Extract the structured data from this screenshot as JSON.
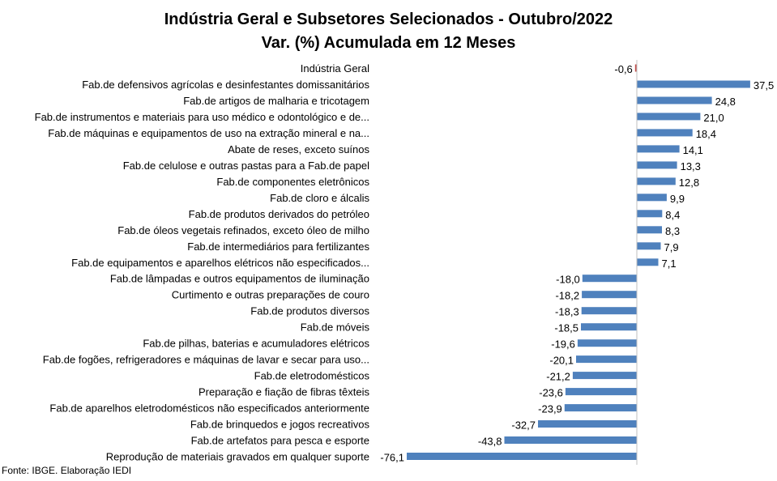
{
  "chart_data": {
    "type": "bar",
    "orientation": "horizontal",
    "title": "Indústria Geral e Subsetores Selecionados - Outubro/2022",
    "subtitle": "Var. (%) Acumulada em 12 Meses",
    "categories": [
      "Indústria Geral",
      "Fab.de defensivos agrícolas e desinfestantes domissanitários",
      "Fab.de artigos de malharia e tricotagem",
      "Fab.de instrumentos e materiais para uso médico e odontológico e de...",
      "Fab.de máquinas e equipamentos de uso na extração mineral e na...",
      "Abate de reses, exceto suínos",
      "Fab.de celulose e outras pastas para a Fab.de papel",
      "Fab.de componentes eletrônicos",
      "Fab.de cloro e álcalis",
      "Fab.de produtos derivados do petróleo",
      "Fab.de óleos vegetais refinados, exceto óleo de milho",
      "Fab.de intermediários para fertilizantes",
      "Fab.de equipamentos e aparelhos elétricos não especificados...",
      "Fab.de lâmpadas e outros equipamentos de iluminação",
      "Curtimento e outras preparações de couro",
      "Fab.de produtos diversos",
      "Fab.de móveis",
      "Fab.de pilhas, baterias e acumuladores elétricos",
      "Fab.de fogões, refrigeradores e máquinas de lavar e secar para uso...",
      "Fab.de eletrodomésticos",
      "Preparação e fiação de fibras têxteis",
      "Fab.de aparelhos eletrodomésticos não especificados anteriormente",
      "Fab.de brinquedos e jogos recreativos",
      "Fab.de artefatos para pesca e esporte",
      "Reprodução de materiais gravados em qualquer suporte"
    ],
    "values": [
      -0.6,
      37.5,
      24.8,
      21.0,
      18.4,
      14.1,
      13.3,
      12.8,
      9.9,
      8.4,
      8.3,
      7.9,
      7.1,
      -18.0,
      -18.2,
      -18.3,
      -18.5,
      -19.6,
      -20.1,
      -21.2,
      -23.6,
      -23.9,
      -32.7,
      -43.8,
      -76.1
    ],
    "value_labels": [
      "-0,6",
      "37,5",
      "24,8",
      "21,0",
      "18,4",
      "14,1",
      "13,3",
      "12,8",
      "9,9",
      "8,4",
      "8,3",
      "7,9",
      "7,1",
      "-18,0",
      "-18,2",
      "-18,3",
      "-18,5",
      "-19,6",
      "-20,1",
      "-21,2",
      "-23,6",
      "-23,9",
      "-32,7",
      "-43,8",
      "-76,1"
    ],
    "xlim": [
      -76.1,
      37.5
    ],
    "grid": false,
    "legend": "none",
    "bar_color": "#4f81bd",
    "highlight_color": "#c0504d",
    "axis_color": "#bfbfbf"
  },
  "source": "Fonte: IBGE. Elaboração IEDI"
}
